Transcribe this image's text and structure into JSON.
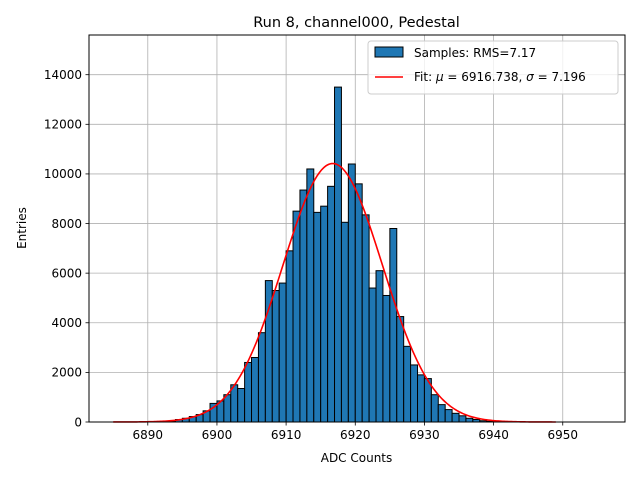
{
  "chart_data": {
    "type": "histogram",
    "title": "Run 8, channel000, Pedestal",
    "xlabel": "ADC Counts",
    "ylabel": "Entries",
    "xlim": [
      6881.5,
      6959.0
    ],
    "ylim": [
      0,
      15600
    ],
    "xticks": [
      6890,
      6900,
      6910,
      6920,
      6930,
      6940,
      6950
    ],
    "yticks": [
      0,
      2000,
      4000,
      6000,
      8000,
      10000,
      12000,
      14000
    ],
    "grid": true,
    "bar_color": "#1f77b4",
    "fit_color": "#ff0000",
    "bins": {
      "left": [
        6885,
        6886,
        6887,
        6888,
        6889,
        6890,
        6891,
        6892,
        6893,
        6894,
        6895,
        6896,
        6897,
        6898,
        6899,
        6900,
        6901,
        6902,
        6903,
        6904,
        6905,
        6906,
        6907,
        6908,
        6909,
        6910,
        6911,
        6912,
        6913,
        6914,
        6915,
        6916,
        6917,
        6918,
        6919,
        6920,
        6921,
        6922,
        6923,
        6924,
        6925,
        6926,
        6927,
        6928,
        6929,
        6930,
        6931,
        6932,
        6933,
        6934,
        6935,
        6936,
        6937,
        6938,
        6939,
        6940,
        6941,
        6942,
        6943,
        6944,
        6945,
        6946,
        6947,
        6948,
        6949,
        6950,
        6951,
        6952,
        6953,
        6954,
        6955
      ],
      "counts": [
        0,
        0,
        0,
        0,
        0,
        0,
        0,
        0,
        30,
        100,
        150,
        220,
        300,
        450,
        750,
        850,
        1100,
        1500,
        1350,
        2400,
        2600,
        3600,
        5700,
        5300,
        5600,
        6900,
        8500,
        9350,
        10200,
        8450,
        8700,
        9500,
        13500,
        8050,
        10400,
        9600,
        8350,
        5400,
        6100,
        5100,
        7800,
        4250,
        3050,
        2300,
        1900,
        1750,
        1100,
        700,
        500,
        350,
        250,
        150,
        100,
        50,
        30,
        10,
        0,
        0,
        0,
        0,
        0,
        0,
        0,
        0,
        0,
        0,
        0,
        0,
        0,
        0,
        0
      ],
      "width": 1
    },
    "fit": {
      "mu": 6916.738,
      "sigma": 7.196,
      "amplitude": 10420,
      "x_range": [
        6885,
        6949
      ]
    },
    "legend": {
      "position": "upper right",
      "entries": [
        {
          "kind": "patch",
          "prefix": "Samples: RMS=",
          "value": "7.17"
        },
        {
          "kind": "line",
          "prefix": "Fit: ",
          "mu_symbol": "μ",
          "mu_text": " = 6916.738, ",
          "sigma_symbol": "σ",
          "sigma_text": " = 7.196"
        }
      ]
    }
  }
}
